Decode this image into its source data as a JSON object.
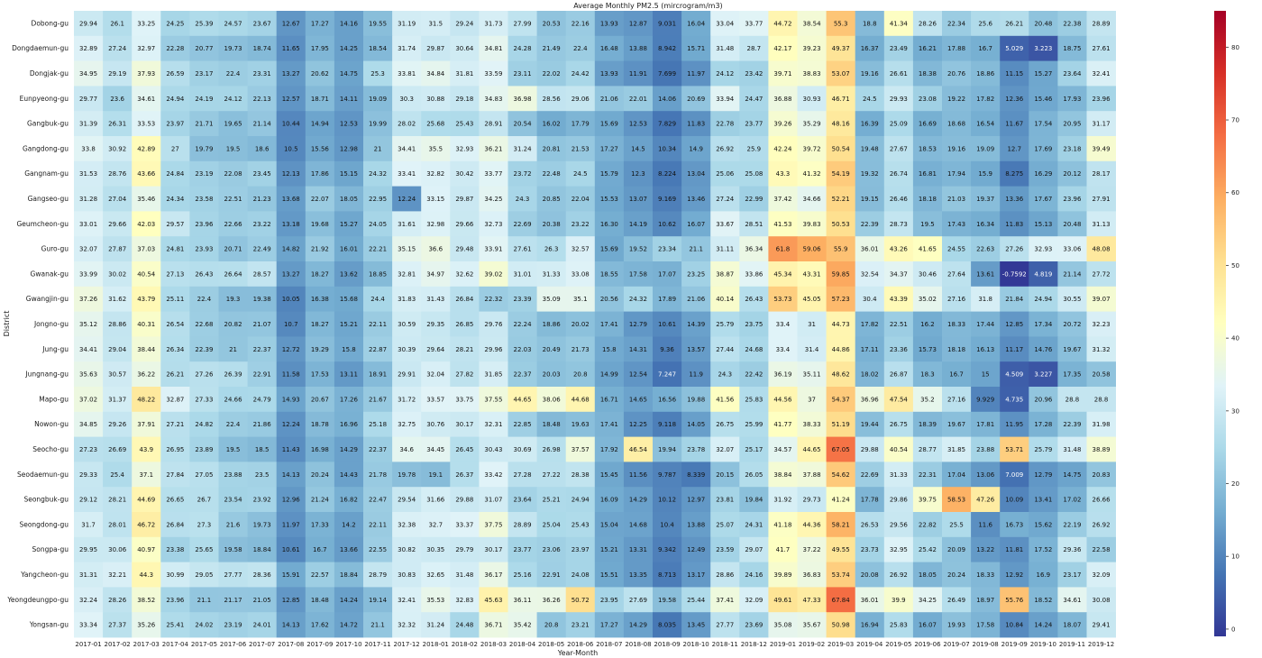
{
  "chart_data": {
    "type": "heatmap",
    "title": "Average Monthly PM2.5 (mircrogram/m3)",
    "xlabel": "Year-Month",
    "ylabel": "District",
    "colormap": "RdYlBu_r",
    "color_range": [
      -1,
      85
    ],
    "colorbar_ticks": [
      0,
      10,
      20,
      30,
      40,
      50,
      60,
      70,
      80
    ],
    "x": [
      "2017-01",
      "2017-02",
      "2017-03",
      "2017-04",
      "2017-05",
      "2017-06",
      "2017-07",
      "2017-08",
      "2017-09",
      "2017-10",
      "2017-11",
      "2017-12",
      "2018-01",
      "2018-02",
      "2018-03",
      "2018-04",
      "2018-05",
      "2018-06",
      "2018-07",
      "2018-08",
      "2018-09",
      "2018-10",
      "2018-11",
      "2018-12",
      "2019-01",
      "2019-02",
      "2019-03",
      "2019-04",
      "2019-05",
      "2019-06",
      "2019-07",
      "2019-08",
      "2019-09",
      "2019-10",
      "2019-11",
      "2019-12"
    ],
    "y": [
      "Dobong-gu",
      "Dongdaemun-gu",
      "Dongjak-gu",
      "Eunpyeong-gu",
      "Gangbuk-gu",
      "Gangdong-gu",
      "Gangnam-gu",
      "Gangseo-gu",
      "Geumcheon-gu",
      "Guro-gu",
      "Gwanak-gu",
      "Gwangjin-gu",
      "Jongno-gu",
      "Jung-gu",
      "Jungnang-gu",
      "Mapo-gu",
      "Nowon-gu",
      "Seocho-gu",
      "Seodaemun-gu",
      "Seongbuk-gu",
      "Seongdong-gu",
      "Songpa-gu",
      "Yangcheon-gu",
      "Yeongdeungpo-gu",
      "Yongsan-gu"
    ],
    "values": [
      [
        "29.94",
        "26.1",
        "33.25",
        "24.25",
        "25.39",
        "24.57",
        "23.67",
        "12.67",
        "17.27",
        "14.16",
        "19.55",
        "31.19",
        "31.5",
        "29.24",
        "31.73",
        "27.99",
        "20.53",
        "22.16",
        "13.93",
        "12.87",
        "9.031",
        "16.04",
        "33.04",
        "33.77",
        "44.72",
        "38.54",
        "55.3",
        "18.8",
        "41.34",
        "28.26",
        "22.34",
        "25.6",
        "26.21",
        "20.48",
        "22.38",
        "28.89"
      ],
      [
        "32.89",
        "27.24",
        "32.97",
        "22.28",
        "20.77",
        "19.73",
        "18.74",
        "11.65",
        "17.95",
        "14.25",
        "18.54",
        "31.74",
        "29.87",
        "30.64",
        "34.81",
        "24.28",
        "21.49",
        "22.4",
        "16.48",
        "13.88",
        "8.942",
        "15.71",
        "31.48",
        "28.7",
        "42.17",
        "39.23",
        "49.37",
        "16.37",
        "23.49",
        "16.21",
        "17.88",
        "16.7",
        "5.029",
        "3.223",
        "18.75",
        "27.61"
      ],
      [
        "34.95",
        "29.19",
        "37.93",
        "26.59",
        "23.17",
        "22.4",
        "23.31",
        "13.27",
        "20.62",
        "14.75",
        "25.3",
        "33.81",
        "34.84",
        "31.81",
        "33.59",
        "23.11",
        "22.02",
        "24.42",
        "13.93",
        "11.91",
        "7.699",
        "11.97",
        "24.12",
        "23.42",
        "39.71",
        "38.83",
        "53.07",
        "19.16",
        "26.61",
        "18.38",
        "20.76",
        "18.86",
        "11.15",
        "15.27",
        "23.64",
        "32.41"
      ],
      [
        "29.77",
        "23.6",
        "34.61",
        "24.94",
        "24.19",
        "24.12",
        "22.13",
        "12.57",
        "18.71",
        "14.11",
        "19.09",
        "30.3",
        "30.88",
        "29.18",
        "34.83",
        "36.98",
        "28.56",
        "29.06",
        "21.06",
        "22.01",
        "14.06",
        "20.69",
        "33.94",
        "24.47",
        "36.88",
        "30.93",
        "46.71",
        "24.5",
        "29.93",
        "23.08",
        "19.22",
        "17.82",
        "12.36",
        "15.46",
        "17.93",
        "23.96"
      ],
      [
        "31.39",
        "26.31",
        "33.53",
        "23.97",
        "21.71",
        "19.65",
        "21.14",
        "10.44",
        "14.94",
        "12.53",
        "19.99",
        "28.02",
        "25.68",
        "25.43",
        "28.91",
        "20.54",
        "16.02",
        "17.79",
        "15.69",
        "12.53",
        "7.829",
        "11.83",
        "22.78",
        "23.77",
        "39.26",
        "35.29",
        "48.16",
        "16.39",
        "25.09",
        "16.69",
        "18.68",
        "16.54",
        "11.67",
        "17.54",
        "20.95",
        "31.17"
      ],
      [
        "33.8",
        "30.92",
        "42.89",
        "27",
        "19.79",
        "19.5",
        "18.6",
        "10.5",
        "15.56",
        "12.98",
        "21",
        "34.41",
        "35.5",
        "32.93",
        "36.21",
        "31.24",
        "20.81",
        "21.53",
        "17.27",
        "14.5",
        "10.34",
        "14.9",
        "26.92",
        "25.9",
        "42.24",
        "39.72",
        "50.54",
        "19.48",
        "27.67",
        "18.53",
        "19.16",
        "19.09",
        "12.7",
        "17.69",
        "23.18",
        "39.49"
      ],
      [
        "31.53",
        "28.76",
        "43.66",
        "24.84",
        "23.19",
        "22.08",
        "23.45",
        "12.13",
        "17.86",
        "15.15",
        "24.32",
        "33.41",
        "32.82",
        "30.42",
        "33.77",
        "23.72",
        "22.48",
        "24.5",
        "15.79",
        "12.3",
        "8.224",
        "13.04",
        "25.06",
        "25.08",
        "43.3",
        "41.32",
        "54.19",
        "19.32",
        "26.74",
        "16.81",
        "17.94",
        "15.9",
        "8.275",
        "16.29",
        "20.12",
        "28.17"
      ],
      [
        "31.28",
        "27.04",
        "35.46",
        "24.34",
        "23.58",
        "22.51",
        "21.23",
        "13.68",
        "22.07",
        "18.05",
        "22.95",
        "12.24",
        "33.15",
        "29.87",
        "34.25",
        "24.3",
        "20.85",
        "22.04",
        "15.53",
        "13.07",
        "9.169",
        "13.46",
        "27.24",
        "22.99",
        "37.42",
        "34.66",
        "52.21",
        "19.15",
        "26.46",
        "18.18",
        "21.03",
        "19.37",
        "13.36",
        "17.67",
        "23.96",
        "27.91"
      ],
      [
        "33.01",
        "29.66",
        "42.03",
        "29.57",
        "23.96",
        "22.66",
        "23.22",
        "13.18",
        "19.68",
        "15.27",
        "24.05",
        "31.61",
        "32.98",
        "29.66",
        "32.73",
        "22.69",
        "20.38",
        "23.22",
        "16.30",
        "14.19",
        "10.62",
        "16.07",
        "33.67",
        "28.51",
        "41.53",
        "39.83",
        "50.53",
        "22.39",
        "28.73",
        "19.5",
        "17.43",
        "16.34",
        "11.83",
        "15.13",
        "20.48",
        "31.13"
      ],
      [
        "32.07",
        "27.87",
        "37.03",
        "24.81",
        "23.93",
        "20.71",
        "22.49",
        "14.82",
        "21.92",
        "16.01",
        "22.21",
        "35.15",
        "36.6",
        "29.48",
        "33.91",
        "27.61",
        "26.3",
        "32.57",
        "15.69",
        "19.52",
        "23.34",
        "21.1",
        "31.11",
        "36.34",
        "61.8",
        "59.06",
        "55.9",
        "36.01",
        "43.26",
        "41.65",
        "24.55",
        "22.63",
        "27.26",
        "32.93",
        "33.06",
        "48.08"
      ],
      [
        "33.99",
        "30.02",
        "40.54",
        "27.13",
        "26.43",
        "26.64",
        "28.57",
        "13.27",
        "18.27",
        "13.62",
        "18.85",
        "32.81",
        "34.97",
        "32.62",
        "39.02",
        "31.01",
        "31.33",
        "33.08",
        "18.55",
        "17.58",
        "17.07",
        "23.25",
        "38.87",
        "33.86",
        "45.34",
        "43.31",
        "59.85",
        "32.54",
        "34.37",
        "30.46",
        "27.64",
        "13.61",
        "-0.7592",
        "4.819",
        "21.14",
        "27.72"
      ],
      [
        "37.26",
        "31.62",
        "43.79",
        "25.11",
        "22.4",
        "19.3",
        "19.38",
        "10.05",
        "16.38",
        "15.68",
        "24.4",
        "31.83",
        "31.43",
        "26.84",
        "22.32",
        "23.39",
        "35.09",
        "35.1",
        "20.56",
        "24.32",
        "17.89",
        "21.06",
        "40.14",
        "26.43",
        "53.73",
        "45.05",
        "57.23",
        "30.4",
        "43.39",
        "35.02",
        "27.16",
        "31.8",
        "21.84",
        "24.94",
        "30.55",
        "39.07"
      ],
      [
        "35.12",
        "28.86",
        "40.31",
        "26.54",
        "22.68",
        "20.82",
        "21.07",
        "10.7",
        "18.27",
        "15.21",
        "22.11",
        "30.59",
        "29.35",
        "26.85",
        "29.76",
        "22.24",
        "18.86",
        "20.02",
        "17.41",
        "12.79",
        "10.61",
        "14.39",
        "25.79",
        "23.75",
        "33.4",
        "31",
        "44.73",
        "17.82",
        "22.51",
        "16.2",
        "18.33",
        "17.44",
        "12.85",
        "17.34",
        "20.72",
        "32.23"
      ],
      [
        "34.41",
        "29.04",
        "38.44",
        "26.34",
        "22.39",
        "21",
        "22.37",
        "12.72",
        "19.29",
        "15.8",
        "22.87",
        "30.39",
        "29.64",
        "28.21",
        "29.96",
        "22.03",
        "20.49",
        "21.73",
        "15.8",
        "14.31",
        "9.36",
        "13.57",
        "27.44",
        "24.68",
        "33.4",
        "31.4",
        "44.86",
        "17.11",
        "23.36",
        "15.73",
        "18.18",
        "16.13",
        "11.17",
        "14.76",
        "19.67",
        "31.32"
      ],
      [
        "35.63",
        "30.57",
        "36.22",
        "26.21",
        "27.26",
        "26.39",
        "22.91",
        "11.58",
        "17.53",
        "13.11",
        "18.91",
        "29.91",
        "32.04",
        "27.82",
        "31.85",
        "22.37",
        "20.03",
        "20.8",
        "14.99",
        "12.54",
        "7.247",
        "11.9",
        "24.3",
        "22.42",
        "36.19",
        "35.11",
        "48.62",
        "18.02",
        "26.87",
        "18.3",
        "16.7",
        "15",
        "4.509",
        "3.227",
        "17.35",
        "20.58"
      ],
      [
        "37.02",
        "31.37",
        "48.22",
        "32.87",
        "27.33",
        "24.66",
        "24.79",
        "14.93",
        "20.67",
        "17.26",
        "21.67",
        "31.72",
        "33.57",
        "33.75",
        "37.55",
        "44.65",
        "38.06",
        "44.68",
        "16.71",
        "14.65",
        "16.56",
        "19.88",
        "41.56",
        "25.83",
        "44.56",
        "37",
        "54.37",
        "36.96",
        "47.54",
        "35.2",
        "27.16",
        "9.929",
        "4.735",
        "20.96",
        "28.8",
        "28.8"
      ],
      [
        "34.85",
        "29.26",
        "37.91",
        "27.21",
        "24.82",
        "22.4",
        "21.86",
        "12.24",
        "18.78",
        "16.96",
        "25.18",
        "32.75",
        "30.76",
        "30.17",
        "32.31",
        "22.85",
        "18.48",
        "19.63",
        "17.41",
        "12.25",
        "9.118",
        "14.05",
        "26.75",
        "25.99",
        "41.77",
        "38.33",
        "51.19",
        "19.44",
        "26.75",
        "18.39",
        "19.67",
        "17.81",
        "11.95",
        "17.28",
        "22.39",
        "31.98"
      ],
      [
        "27.23",
        "26.69",
        "43.9",
        "26.95",
        "23.89",
        "19.5",
        "18.5",
        "11.43",
        "16.98",
        "14.29",
        "22.37",
        "34.6",
        "34.45",
        "26.45",
        "30.43",
        "30.69",
        "26.98",
        "37.57",
        "17.92",
        "46.54",
        "19.94",
        "23.78",
        "32.07",
        "25.17",
        "34.57",
        "44.65",
        "67.05",
        "29.88",
        "40.54",
        "28.77",
        "31.85",
        "23.88",
        "53.71",
        "25.79",
        "31.48",
        "38.89"
      ],
      [
        "29.33",
        "25.4",
        "37.1",
        "27.84",
        "27.05",
        "23.88",
        "23.5",
        "14.13",
        "20.24",
        "14.43",
        "21.78",
        "19.78",
        "19.1",
        "26.37",
        "33.42",
        "27.28",
        "27.22",
        "28.38",
        "15.45",
        "11.56",
        "9.787",
        "8.339",
        "20.15",
        "26.05",
        "38.84",
        "37.88",
        "54.62",
        "22.69",
        "31.33",
        "22.31",
        "17.04",
        "13.06",
        "7.009",
        "12.79",
        "14.75",
        "20.83"
      ],
      [
        "29.12",
        "28.21",
        "44.69",
        "26.65",
        "26.7",
        "23.54",
        "23.92",
        "12.96",
        "21.24",
        "16.82",
        "22.47",
        "29.54",
        "31.66",
        "29.88",
        "31.07",
        "23.64",
        "25.21",
        "24.94",
        "16.09",
        "14.29",
        "10.12",
        "12.97",
        "23.81",
        "19.84",
        "31.92",
        "29.73",
        "41.24",
        "17.78",
        "29.86",
        "39.75",
        "58.53",
        "47.26",
        "10.09",
        "13.41",
        "17.02",
        "26.66"
      ],
      [
        "31.7",
        "28.01",
        "46.72",
        "26.84",
        "27.3",
        "21.6",
        "19.73",
        "11.97",
        "17.33",
        "14.2",
        "22.11",
        "32.38",
        "32.7",
        "33.37",
        "37.75",
        "28.89",
        "25.04",
        "25.43",
        "15.04",
        "14.68",
        "10.4",
        "13.88",
        "25.07",
        "24.31",
        "41.18",
        "44.36",
        "58.21",
        "26.53",
        "29.56",
        "22.82",
        "25.5",
        "11.6",
        "16.73",
        "15.62",
        "22.19",
        "26.92"
      ],
      [
        "29.95",
        "30.06",
        "40.97",
        "23.38",
        "25.65",
        "19.58",
        "18.84",
        "10.61",
        "16.7",
        "13.66",
        "22.55",
        "30.82",
        "30.35",
        "29.79",
        "30.17",
        "23.77",
        "23.06",
        "23.97",
        "15.21",
        "13.31",
        "9.342",
        "12.49",
        "23.59",
        "29.07",
        "41.7",
        "37.22",
        "49.55",
        "23.73",
        "32.95",
        "25.42",
        "20.09",
        "13.22",
        "11.81",
        "17.52",
        "29.36",
        "22.58"
      ],
      [
        "31.31",
        "32.21",
        "44.3",
        "30.99",
        "29.05",
        "27.77",
        "28.36",
        "15.91",
        "22.57",
        "18.84",
        "28.79",
        "30.83",
        "32.65",
        "31.48",
        "36.17",
        "25.16",
        "22.91",
        "24.08",
        "15.51",
        "13.35",
        "8.713",
        "13.17",
        "28.86",
        "24.16",
        "39.89",
        "36.83",
        "53.74",
        "20.08",
        "26.92",
        "18.05",
        "20.24",
        "18.33",
        "12.92",
        "16.9",
        "23.17",
        "32.09"
      ],
      [
        "32.24",
        "28.26",
        "38.52",
        "23.96",
        "21.1",
        "21.17",
        "21.05",
        "12.85",
        "18.48",
        "14.24",
        "19.14",
        "32.41",
        "35.53",
        "32.83",
        "45.63",
        "36.11",
        "36.26",
        "50.72",
        "23.95",
        "27.69",
        "19.58",
        "25.44",
        "37.41",
        "32.09",
        "49.61",
        "47.33",
        "67.84",
        "36.01",
        "39.9",
        "34.25",
        "26.49",
        "18.97",
        "55.76",
        "18.52",
        "34.61",
        "30.08"
      ],
      [
        "33.34",
        "27.37",
        "35.26",
        "25.41",
        "24.02",
        "23.19",
        "24.01",
        "14.13",
        "17.62",
        "14.72",
        "21.1",
        "32.32",
        "31.24",
        "24.48",
        "36.71",
        "35.42",
        "20.8",
        "23.21",
        "17.27",
        "14.29",
        "8.035",
        "13.45",
        "27.77",
        "23.69",
        "35.08",
        "35.67",
        "50.98",
        "16.94",
        "25.83",
        "16.07",
        "19.93",
        "17.58",
        "10.84",
        "14.24",
        "18.07",
        "29.41"
      ]
    ]
  }
}
